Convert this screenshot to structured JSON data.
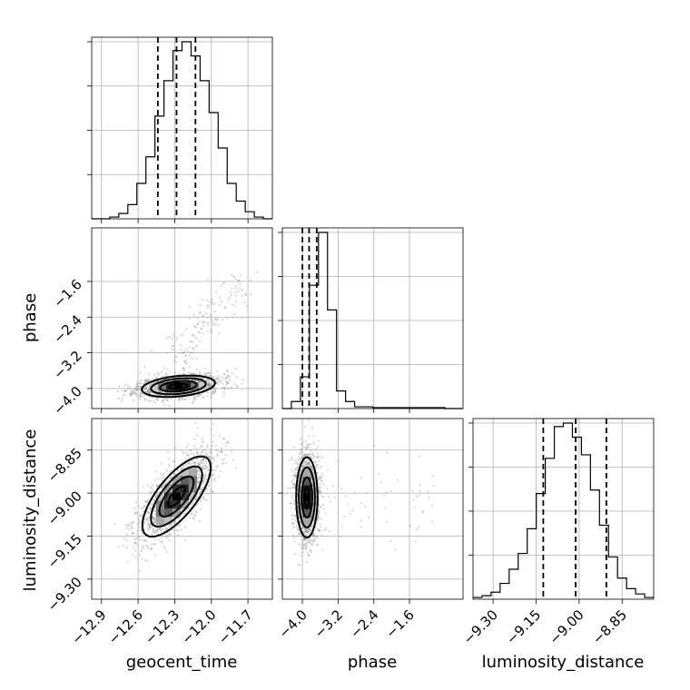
{
  "chart_data": {
    "type": "corner",
    "parameters": [
      "geocent_time",
      "phase",
      "luminosity_distance"
    ],
    "axis_labels": {
      "geocent_time": "geocent_time",
      "phase": "phase",
      "luminosity_distance": "luminosity_distance"
    },
    "ranges": {
      "geocent_time": [
        -12.98,
        -11.5
      ],
      "phase": [
        -4.45,
        -0.4
      ],
      "luminosity_distance": [
        -9.37,
        -8.74
      ]
    },
    "ticks": {
      "geocent_time": [
        "−12.9",
        "−12.6",
        "−12.3",
        "−12.0",
        "−11.7"
      ],
      "phase": [
        "−4.0",
        "−3.2",
        "−2.4",
        "−1.6"
      ],
      "luminosity_distance": [
        "−9.30",
        "−9.15",
        "−9.00",
        "−8.85"
      ]
    },
    "tick_values": {
      "geocent_time": [
        -12.9,
        -12.6,
        -12.3,
        -12.0,
        -11.7
      ],
      "phase": [
        -4.0,
        -3.2,
        -2.4,
        -1.6
      ],
      "luminosity_distance": [
        -9.3,
        -9.15,
        -9.0,
        -8.85
      ]
    },
    "histograms": {
      "geocent_time": {
        "counts": [
          0,
          0,
          1,
          3,
          8,
          20,
          35,
          58,
          78,
          95,
          100,
          92,
          78,
          60,
          40,
          20,
          10,
          4,
          1,
          0
        ],
        "quantiles": [
          -12.438,
          -12.285,
          -12.13
        ]
      },
      "phase": {
        "counts": [
          0,
          4,
          18,
          70,
          100,
          56,
          10,
          4,
          1,
          1,
          0.5,
          0.5,
          0.5,
          0.5,
          0.5,
          0.5,
          0.5,
          0.5,
          0,
          0
        ],
        "quantiles": [
          -4.0,
          -3.85,
          -3.68
        ]
      },
      "luminosity_distance": {
        "counts": [
          1,
          2,
          4,
          9,
          17,
          26,
          40,
          60,
          80,
          98,
          100,
          92,
          82,
          62,
          42,
          24,
          12,
          6,
          3,
          1
        ],
        "quantiles": [
          -9.125,
          -9.012,
          -8.905
        ]
      }
    },
    "samples_2d": {
      "phase_vs_geocent_time": {
        "mean": [
          -12.27,
          -3.95
        ],
        "std": [
          0.15,
          0.12
        ],
        "corr": 0.3,
        "tail": {
          "x_from": -12.3,
          "x_to": -11.7,
          "y_from": -3.6,
          "y_to": -1.5
        }
      },
      "luminosity_distance_vs_geocent_time": {
        "mean": [
          -12.285,
          -9.012
        ],
        "std": [
          0.14,
          0.07
        ],
        "corr": 0.72
      },
      "luminosity_distance_vs_phase": {
        "mean": [
          -3.9,
          -9.015
        ],
        "std": [
          0.12,
          0.07
        ],
        "corr": 0.0
      }
    },
    "grid": true,
    "legend": "none"
  }
}
